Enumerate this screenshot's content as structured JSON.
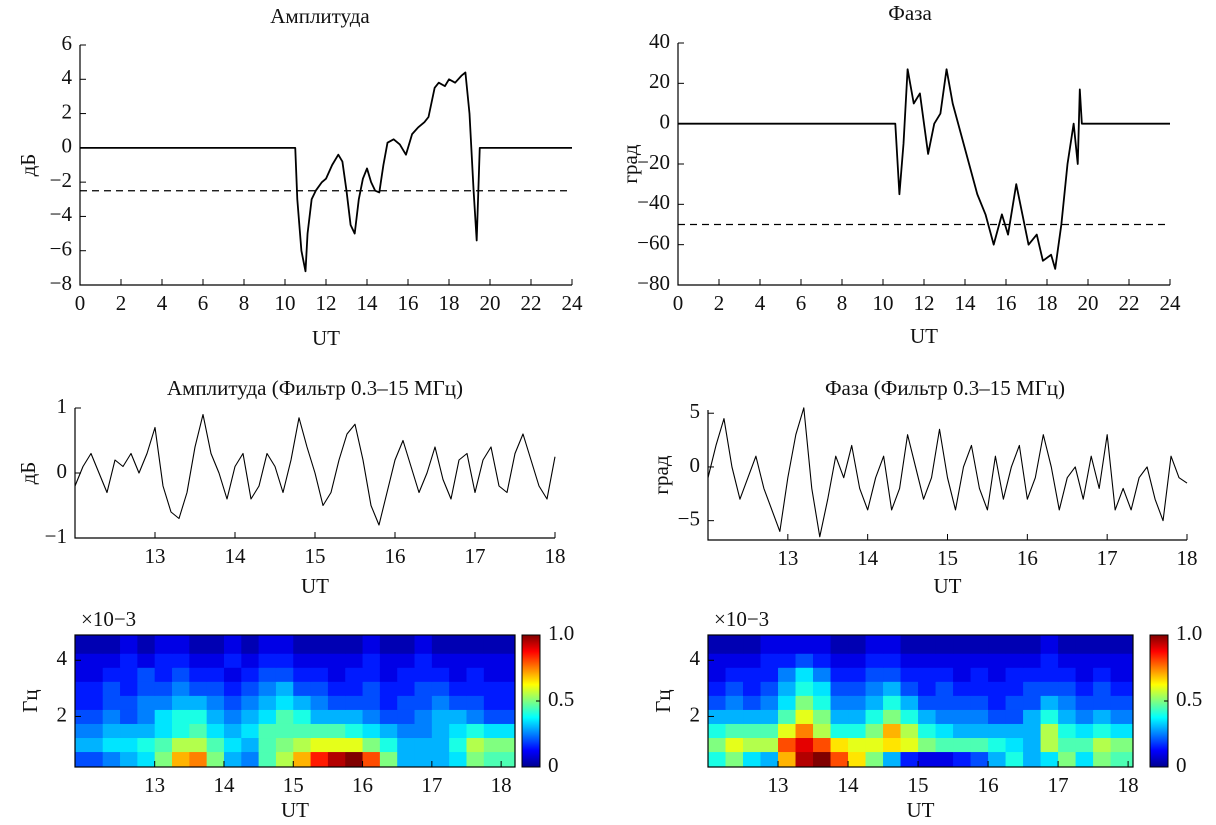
{
  "chart_data": [
    {
      "type": "line",
      "title": "Амплитуда",
      "xlabel": "UT",
      "ylabel": "дБ",
      "color": "#000000",
      "threshold": -2.5,
      "x": [
        0,
        10.5,
        10.6,
        10.8,
        11.0,
        11.1,
        11.3,
        11.5,
        11.8,
        12.0,
        12.3,
        12.6,
        12.8,
        13.0,
        13.2,
        13.4,
        13.6,
        13.8,
        14.0,
        14.2,
        14.4,
        14.6,
        14.8,
        15.0,
        15.3,
        15.6,
        15.9,
        16.2,
        16.5,
        16.8,
        17.0,
        17.3,
        17.5,
        17.8,
        18.0,
        18.3,
        18.6,
        18.8,
        19.0,
        19.2,
        19.35,
        19.5,
        24
      ],
      "values": [
        0,
        0,
        -3,
        -6,
        -7.2,
        -5,
        -3,
        -2.5,
        -2,
        -1.8,
        -1,
        -0.4,
        -0.8,
        -2.5,
        -4.5,
        -5,
        -3,
        -1.8,
        -1.2,
        -2,
        -2.5,
        -2.6,
        -1,
        0.3,
        0.5,
        0.2,
        -0.4,
        0.8,
        1.2,
        1.5,
        1.8,
        3.5,
        3.8,
        3.6,
        4,
        3.8,
        4.2,
        4.4,
        2,
        -2.5,
        -5.4,
        0,
        0
      ],
      "xlim": [
        0,
        24
      ],
      "ylim": [
        -8,
        6
      ],
      "xticks": [
        0,
        2,
        4,
        6,
        8,
        10,
        12,
        14,
        16,
        18,
        20,
        22,
        24
      ],
      "yticks": [
        6,
        4,
        2,
        0,
        {
          "value": -2,
          "label": "−2"
        },
        {
          "value": -4,
          "label": "−4"
        },
        {
          "value": -6,
          "label": "−6"
        },
        {
          "value": -8,
          "label": "−8"
        }
      ]
    },
    {
      "type": "line",
      "title": "Фаза",
      "xlabel": "UT",
      "ylabel": "град",
      "color": "#000000",
      "threshold": -50,
      "x": [
        0,
        10.6,
        10.8,
        11.0,
        11.2,
        11.5,
        11.8,
        12.2,
        12.5,
        12.8,
        13.1,
        13.4,
        13.8,
        14.2,
        14.6,
        15.0,
        15.4,
        15.8,
        16.1,
        16.5,
        16.8,
        17.1,
        17.5,
        17.8,
        18.2,
        18.4,
        18.7,
        19.0,
        19.3,
        19.5,
        19.6,
        19.7,
        24
      ],
      "values": [
        0,
        0,
        -35,
        -10,
        27,
        10,
        15,
        -15,
        0,
        5,
        27,
        10,
        -5,
        -20,
        -35,
        -45,
        -60,
        -45,
        -55,
        -30,
        -45,
        -60,
        -55,
        -68,
        -65,
        -72,
        -50,
        -20,
        0,
        -20,
        17,
        0,
        0
      ],
      "xlim": [
        0,
        24
      ],
      "ylim": [
        -80,
        40
      ],
      "xticks": [
        0,
        2,
        4,
        6,
        8,
        10,
        12,
        14,
        16,
        18,
        20,
        22,
        24
      ],
      "yticks": [
        40,
        20,
        0,
        {
          "value": -20,
          "label": "−20"
        },
        {
          "value": -40,
          "label": "−40"
        },
        {
          "value": -60,
          "label": "−60"
        },
        {
          "value": -80,
          "label": "−80"
        }
      ]
    },
    {
      "type": "line",
      "title": "Амплитуда (Фильтр 0.3–15 МГц)",
      "xlabel": "UT",
      "ylabel": "дБ",
      "color": "#000000",
      "x": [
        12.0,
        12.1,
        12.2,
        12.3,
        12.4,
        12.5,
        12.6,
        12.7,
        12.8,
        12.9,
        13.0,
        13.1,
        13.2,
        13.3,
        13.4,
        13.5,
        13.6,
        13.7,
        13.8,
        13.9,
        14.0,
        14.1,
        14.2,
        14.3,
        14.4,
        14.5,
        14.6,
        14.7,
        14.8,
        14.9,
        15.0,
        15.1,
        15.2,
        15.3,
        15.4,
        15.5,
        15.6,
        15.7,
        15.8,
        15.9,
        16.0,
        16.1,
        16.2,
        16.3,
        16.4,
        16.5,
        16.6,
        16.7,
        16.8,
        16.9,
        17.0,
        17.1,
        17.2,
        17.3,
        17.4,
        17.5,
        17.6,
        17.7,
        17.8,
        17.9,
        18.0
      ],
      "values": [
        -0.2,
        0.1,
        0.3,
        0.0,
        -0.3,
        0.2,
        0.1,
        0.3,
        0.0,
        0.3,
        0.7,
        -0.2,
        -0.6,
        -0.7,
        -0.3,
        0.4,
        0.9,
        0.3,
        0.0,
        -0.4,
        0.1,
        0.3,
        -0.4,
        -0.2,
        0.3,
        0.1,
        -0.3,
        0.2,
        0.85,
        0.4,
        0.0,
        -0.5,
        -0.3,
        0.2,
        0.6,
        0.75,
        0.2,
        -0.5,
        -0.8,
        -0.3,
        0.2,
        0.5,
        0.1,
        -0.3,
        0.0,
        0.4,
        -0.1,
        -0.4,
        0.2,
        0.3,
        -0.3,
        0.2,
        0.4,
        -0.2,
        -0.3,
        0.3,
        0.6,
        0.2,
        -0.2,
        -0.4,
        0.25
      ],
      "xlim": [
        12,
        18
      ],
      "ylim": [
        -1,
        1
      ],
      "xticks": [
        13,
        14,
        15,
        16,
        17,
        18
      ],
      "yticks": [
        1,
        0,
        {
          "value": -1,
          "label": "−1"
        }
      ]
    },
    {
      "type": "line",
      "title": "Фаза (Фильтр 0.3–15 МГц)",
      "xlabel": "UT",
      "ylabel": "град",
      "color": "#000000",
      "x": [
        12.0,
        12.1,
        12.2,
        12.3,
        12.4,
        12.5,
        12.6,
        12.7,
        12.8,
        12.9,
        13.0,
        13.1,
        13.2,
        13.3,
        13.4,
        13.5,
        13.6,
        13.7,
        13.8,
        13.9,
        14.0,
        14.1,
        14.2,
        14.3,
        14.4,
        14.5,
        14.6,
        14.7,
        14.8,
        14.9,
        15.0,
        15.1,
        15.2,
        15.3,
        15.4,
        15.5,
        15.6,
        15.7,
        15.8,
        15.9,
        16.0,
        16.1,
        16.2,
        16.3,
        16.4,
        16.5,
        16.6,
        16.7,
        16.8,
        16.9,
        17.0,
        17.1,
        17.2,
        17.3,
        17.4,
        17.5,
        17.6,
        17.7,
        17.8,
        17.9,
        18.0
      ],
      "values": [
        -1,
        2,
        4.5,
        0,
        -3,
        -1,
        1,
        -2,
        -4,
        -6,
        -1,
        3,
        5.5,
        -2,
        -6.5,
        -3,
        1,
        -1,
        2,
        -2,
        -4,
        -1,
        1,
        -4,
        -2,
        3,
        0,
        -3,
        -1,
        3.5,
        -1,
        -4,
        0,
        2,
        -2,
        -4,
        1,
        -3,
        0,
        2,
        -3,
        -1,
        3,
        0,
        -4,
        -1,
        0,
        -3,
        1,
        -2,
        3,
        -4,
        -2,
        -4,
        -1,
        0,
        -3,
        -5,
        1,
        -1,
        -1.5
      ],
      "xlim": [
        12,
        18
      ],
      "ylim": [
        -6.8,
        5.3
      ],
      "xticks": [
        13,
        14,
        15,
        16,
        17,
        18
      ],
      "yticks": [
        5,
        0,
        {
          "value": -5,
          "label": "−5"
        }
      ]
    },
    {
      "type": "heatmap",
      "xlabel": "UT",
      "ylabel": "Гц",
      "scale_label": "×10−3",
      "colormap": "jet",
      "x": [
        12.125,
        12.375,
        12.625,
        12.875,
        13.125,
        13.375,
        13.625,
        13.875,
        14.125,
        14.375,
        14.625,
        14.875,
        15.125,
        15.375,
        15.625,
        15.875,
        16.125,
        16.375,
        16.625,
        16.875,
        17.125,
        17.375,
        17.625,
        17.875
      ],
      "y": [
        0.5,
        1.0,
        1.5,
        2.0,
        2.5,
        3.0,
        3.5,
        4.0,
        4.5
      ],
      "values": [
        [
          0.2,
          0.25,
          0.3,
          0.35,
          0.5,
          0.7,
          0.75,
          0.5,
          0.3,
          0.25,
          0.45,
          0.55,
          0.7,
          0.85,
          0.95,
          1.0,
          0.8,
          0.5,
          0.3,
          0.3,
          0.3,
          0.35,
          0.5,
          0.45
        ],
        [
          0.3,
          0.35,
          0.35,
          0.4,
          0.45,
          0.55,
          0.55,
          0.45,
          0.35,
          0.3,
          0.45,
          0.5,
          0.55,
          0.6,
          0.6,
          0.6,
          0.5,
          0.4,
          0.3,
          0.3,
          0.3,
          0.4,
          0.55,
          0.5
        ],
        [
          0.25,
          0.3,
          0.3,
          0.3,
          0.35,
          0.4,
          0.45,
          0.35,
          0.3,
          0.35,
          0.45,
          0.45,
          0.45,
          0.45,
          0.45,
          0.4,
          0.35,
          0.3,
          0.25,
          0.25,
          0.3,
          0.35,
          0.4,
          0.35
        ],
        [
          0.2,
          0.25,
          0.2,
          0.25,
          0.35,
          0.4,
          0.4,
          0.3,
          0.25,
          0.3,
          0.35,
          0.45,
          0.4,
          0.3,
          0.3,
          0.3,
          0.25,
          0.2,
          0.2,
          0.25,
          0.3,
          0.3,
          0.25,
          0.2
        ],
        [
          0.15,
          0.2,
          0.2,
          0.25,
          0.25,
          0.3,
          0.3,
          0.25,
          0.2,
          0.25,
          0.3,
          0.35,
          0.3,
          0.25,
          0.2,
          0.2,
          0.2,
          0.15,
          0.2,
          0.2,
          0.25,
          0.2,
          0.2,
          0.15
        ],
        [
          0.15,
          0.2,
          0.15,
          0.2,
          0.2,
          0.25,
          0.2,
          0.2,
          0.15,
          0.2,
          0.25,
          0.3,
          0.2,
          0.2,
          0.15,
          0.15,
          0.2,
          0.15,
          0.15,
          0.2,
          0.2,
          0.15,
          0.15,
          0.15
        ],
        [
          0.1,
          0.15,
          0.15,
          0.2,
          0.15,
          0.2,
          0.15,
          0.15,
          0.1,
          0.15,
          0.2,
          0.2,
          0.15,
          0.15,
          0.1,
          0.15,
          0.15,
          0.1,
          0.15,
          0.15,
          0.15,
          0.1,
          0.15,
          0.1
        ],
        [
          0.1,
          0.1,
          0.15,
          0.1,
          0.15,
          0.15,
          0.1,
          0.1,
          0.15,
          0.1,
          0.15,
          0.15,
          0.1,
          0.1,
          0.1,
          0.1,
          0.15,
          0.1,
          0.1,
          0.15,
          0.1,
          0.1,
          0.1,
          0.1
        ],
        [
          0.05,
          0.05,
          0.1,
          0.05,
          0.1,
          0.1,
          0.05,
          0.05,
          0.1,
          0.05,
          0.1,
          0.1,
          0.05,
          0.05,
          0.05,
          0.05,
          0.1,
          0.05,
          0.05,
          0.1,
          0.05,
          0.05,
          0.05,
          0.05
        ]
      ],
      "xlim": [
        11.85,
        18.2
      ],
      "ylim": [
        0.2,
        4.9
      ],
      "xticks": [
        13,
        14,
        15,
        16,
        17,
        18
      ],
      "yticks": [
        2,
        4
      ],
      "clim": [
        0,
        1
      ],
      "cticks": [
        0,
        0.5,
        {
          "value": 1,
          "label": "1.0"
        }
      ]
    },
    {
      "type": "heatmap",
      "xlabel": "UT",
      "ylabel": "Гц",
      "scale_label": "×10−3",
      "colormap": "jet",
      "x": [
        12.125,
        12.375,
        12.625,
        12.875,
        13.125,
        13.375,
        13.625,
        13.875,
        14.125,
        14.375,
        14.625,
        14.875,
        15.125,
        15.375,
        15.625,
        15.875,
        16.125,
        16.375,
        16.625,
        16.875,
        17.125,
        17.375,
        17.625,
        17.875
      ],
      "y": [
        0.5,
        1.0,
        1.5,
        2.0,
        2.5,
        3.0,
        3.5,
        4.0,
        4.5
      ],
      "values": [
        [
          0.4,
          0.5,
          0.35,
          0.3,
          0.7,
          0.95,
          1.0,
          0.8,
          0.65,
          0.5,
          0.3,
          0.15,
          0.1,
          0.1,
          0.15,
          0.2,
          0.3,
          0.4,
          0.3,
          0.35,
          0.5,
          0.35,
          0.5,
          0.45
        ],
        [
          0.5,
          0.6,
          0.55,
          0.55,
          0.8,
          0.9,
          0.8,
          0.65,
          0.6,
          0.6,
          0.65,
          0.6,
          0.5,
          0.45,
          0.45,
          0.45,
          0.4,
          0.35,
          0.3,
          0.55,
          0.45,
          0.45,
          0.55,
          0.5
        ],
        [
          0.4,
          0.45,
          0.45,
          0.45,
          0.6,
          0.75,
          0.55,
          0.4,
          0.4,
          0.5,
          0.7,
          0.55,
          0.4,
          0.35,
          0.3,
          0.3,
          0.3,
          0.3,
          0.3,
          0.55,
          0.4,
          0.35,
          0.4,
          0.35
        ],
        [
          0.3,
          0.3,
          0.3,
          0.3,
          0.45,
          0.6,
          0.5,
          0.3,
          0.3,
          0.4,
          0.5,
          0.4,
          0.3,
          0.25,
          0.25,
          0.25,
          0.2,
          0.2,
          0.3,
          0.4,
          0.3,
          0.25,
          0.3,
          0.25
        ],
        [
          0.2,
          0.25,
          0.2,
          0.25,
          0.35,
          0.5,
          0.4,
          0.25,
          0.25,
          0.3,
          0.4,
          0.3,
          0.2,
          0.2,
          0.2,
          0.2,
          0.15,
          0.2,
          0.2,
          0.3,
          0.25,
          0.2,
          0.2,
          0.2
        ],
        [
          0.15,
          0.2,
          0.15,
          0.2,
          0.3,
          0.4,
          0.35,
          0.2,
          0.2,
          0.25,
          0.3,
          0.2,
          0.15,
          0.2,
          0.15,
          0.15,
          0.15,
          0.15,
          0.2,
          0.2,
          0.2,
          0.15,
          0.2,
          0.15
        ],
        [
          0.1,
          0.15,
          0.15,
          0.15,
          0.25,
          0.35,
          0.25,
          0.15,
          0.15,
          0.2,
          0.2,
          0.15,
          0.15,
          0.15,
          0.1,
          0.15,
          0.1,
          0.15,
          0.15,
          0.15,
          0.15,
          0.1,
          0.15,
          0.1
        ],
        [
          0.1,
          0.1,
          0.1,
          0.15,
          0.15,
          0.2,
          0.15,
          0.1,
          0.1,
          0.15,
          0.15,
          0.1,
          0.1,
          0.1,
          0.1,
          0.1,
          0.1,
          0.1,
          0.1,
          0.15,
          0.1,
          0.1,
          0.1,
          0.1
        ],
        [
          0.05,
          0.05,
          0.05,
          0.1,
          0.1,
          0.1,
          0.1,
          0.05,
          0.05,
          0.1,
          0.1,
          0.05,
          0.05,
          0.05,
          0.05,
          0.05,
          0.05,
          0.05,
          0.05,
          0.1,
          0.05,
          0.05,
          0.05,
          0.05
        ]
      ],
      "xlim": [
        12,
        18.07
      ],
      "ylim": [
        0.2,
        4.9
      ],
      "xticks": [
        13,
        14,
        15,
        16,
        17,
        18
      ],
      "yticks": [
        2,
        4
      ],
      "clim": [
        0,
        1
      ],
      "cticks": [
        0,
        0.5,
        {
          "value": 1,
          "label": "1.0"
        }
      ]
    }
  ]
}
